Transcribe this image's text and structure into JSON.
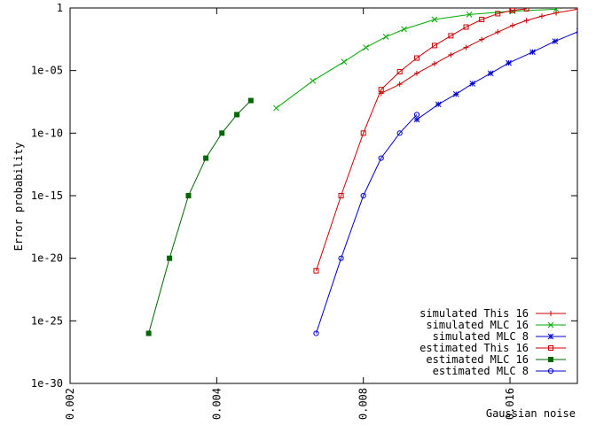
{
  "chart_data": {
    "type": "line",
    "title": "",
    "xlabel": "Gaussian noise",
    "ylabel": "Error probability",
    "x_scale": "log",
    "y_scale": "log",
    "xlim": [
      0.002,
      0.022
    ],
    "ylim": [
      1e-30,
      1
    ],
    "x_ticks": [
      {
        "value": 0.002,
        "label": "0.002"
      },
      {
        "value": 0.004,
        "label": "0.004"
      },
      {
        "value": 0.008,
        "label": "0.008"
      },
      {
        "value": 0.016,
        "label": "0.016"
      }
    ],
    "y_ticks": [
      {
        "value": 1,
        "label": "1"
      },
      {
        "value": 1e-05,
        "label": "1e-05"
      },
      {
        "value": 1e-10,
        "label": "1e-10"
      },
      {
        "value": 1e-15,
        "label": "1e-15"
      },
      {
        "value": 1e-20,
        "label": "1e-20"
      },
      {
        "value": 1e-25,
        "label": "1e-25"
      },
      {
        "value": 1e-30,
        "label": "1e-30"
      }
    ],
    "grid": false,
    "legend_position": "bottom-right",
    "series": [
      {
        "name": "simulated This 16",
        "color": "#cc0000",
        "marker": "plus",
        "points": [
          [
            0.0087,
            1.5e-07
          ],
          [
            0.0095,
            8e-07
          ],
          [
            0.0103,
            6e-06
          ],
          [
            0.0112,
            3.5e-05
          ],
          [
            0.0121,
            0.00018
          ],
          [
            0.013,
            0.0007
          ],
          [
            0.014,
            0.003
          ],
          [
            0.0151,
            0.012
          ],
          [
            0.0162,
            0.04
          ],
          [
            0.0173,
            0.1
          ],
          [
            0.0186,
            0.22
          ],
          [
            0.0199,
            0.4
          ],
          [
            0.022,
            0.8
          ]
        ]
      },
      {
        "name": "simulated  MLC 16",
        "color": "#00aa00",
        "marker": "cross",
        "points": [
          [
            0.0053,
            1e-08
          ],
          [
            0.0063,
            1.5e-06
          ],
          [
            0.0073,
            5e-05
          ],
          [
            0.0081,
            0.0007
          ],
          [
            0.0089,
            0.005
          ],
          [
            0.0097,
            0.02
          ],
          [
            0.0112,
            0.12
          ],
          [
            0.0132,
            0.3
          ],
          [
            0.0162,
            0.55
          ],
          [
            0.0199,
            0.8
          ]
        ]
      },
      {
        "name": "simulated  MLC  8",
        "color": "#0000cc",
        "marker": "star",
        "points": [
          [
            0.0103,
            1.2e-09
          ],
          [
            0.0114,
            2e-08
          ],
          [
            0.0124,
            1.3e-07
          ],
          [
            0.0134,
            9e-07
          ],
          [
            0.0146,
            6e-06
          ],
          [
            0.0159,
            4e-05
          ],
          [
            0.0178,
            0.0003
          ],
          [
            0.0198,
            0.0022
          ],
          [
            0.0222,
            0.014
          ],
          [
            0.0242,
            0.05
          ]
        ]
      },
      {
        "name": "estimated This 16",
        "color": "#cc0000",
        "marker": "square",
        "points": [
          [
            0.0064,
            1e-21
          ],
          [
            0.0072,
            1e-15
          ],
          [
            0.008,
            1e-10
          ],
          [
            0.0087,
            3e-07
          ],
          [
            0.0095,
            8e-06
          ],
          [
            0.0103,
            0.0001
          ],
          [
            0.0112,
            0.001
          ],
          [
            0.0121,
            0.006
          ],
          [
            0.013,
            0.03
          ],
          [
            0.014,
            0.12
          ],
          [
            0.0151,
            0.35
          ],
          [
            0.0162,
            0.65
          ],
          [
            0.0173,
            0.85
          ]
        ]
      },
      {
        "name": "estimated  MLC 16",
        "color": "#006600",
        "marker": "filled-square",
        "points": [
          [
            0.0029,
            1e-26
          ],
          [
            0.0032,
            1e-20
          ],
          [
            0.0035,
            1e-15
          ],
          [
            0.0038,
            1e-12
          ],
          [
            0.0041,
            1e-10
          ],
          [
            0.0044,
            3e-09
          ],
          [
            0.0047,
            4e-08
          ]
        ]
      },
      {
        "name": "estimated  MLC  8",
        "color": "#0000cc",
        "marker": "circle",
        "points": [
          [
            0.0064,
            1e-26
          ],
          [
            0.0072,
            1e-20
          ],
          [
            0.008,
            1e-15
          ],
          [
            0.0087,
            1e-12
          ],
          [
            0.0095,
            1e-10
          ],
          [
            0.0103,
            3e-09
          ]
        ]
      }
    ]
  }
}
